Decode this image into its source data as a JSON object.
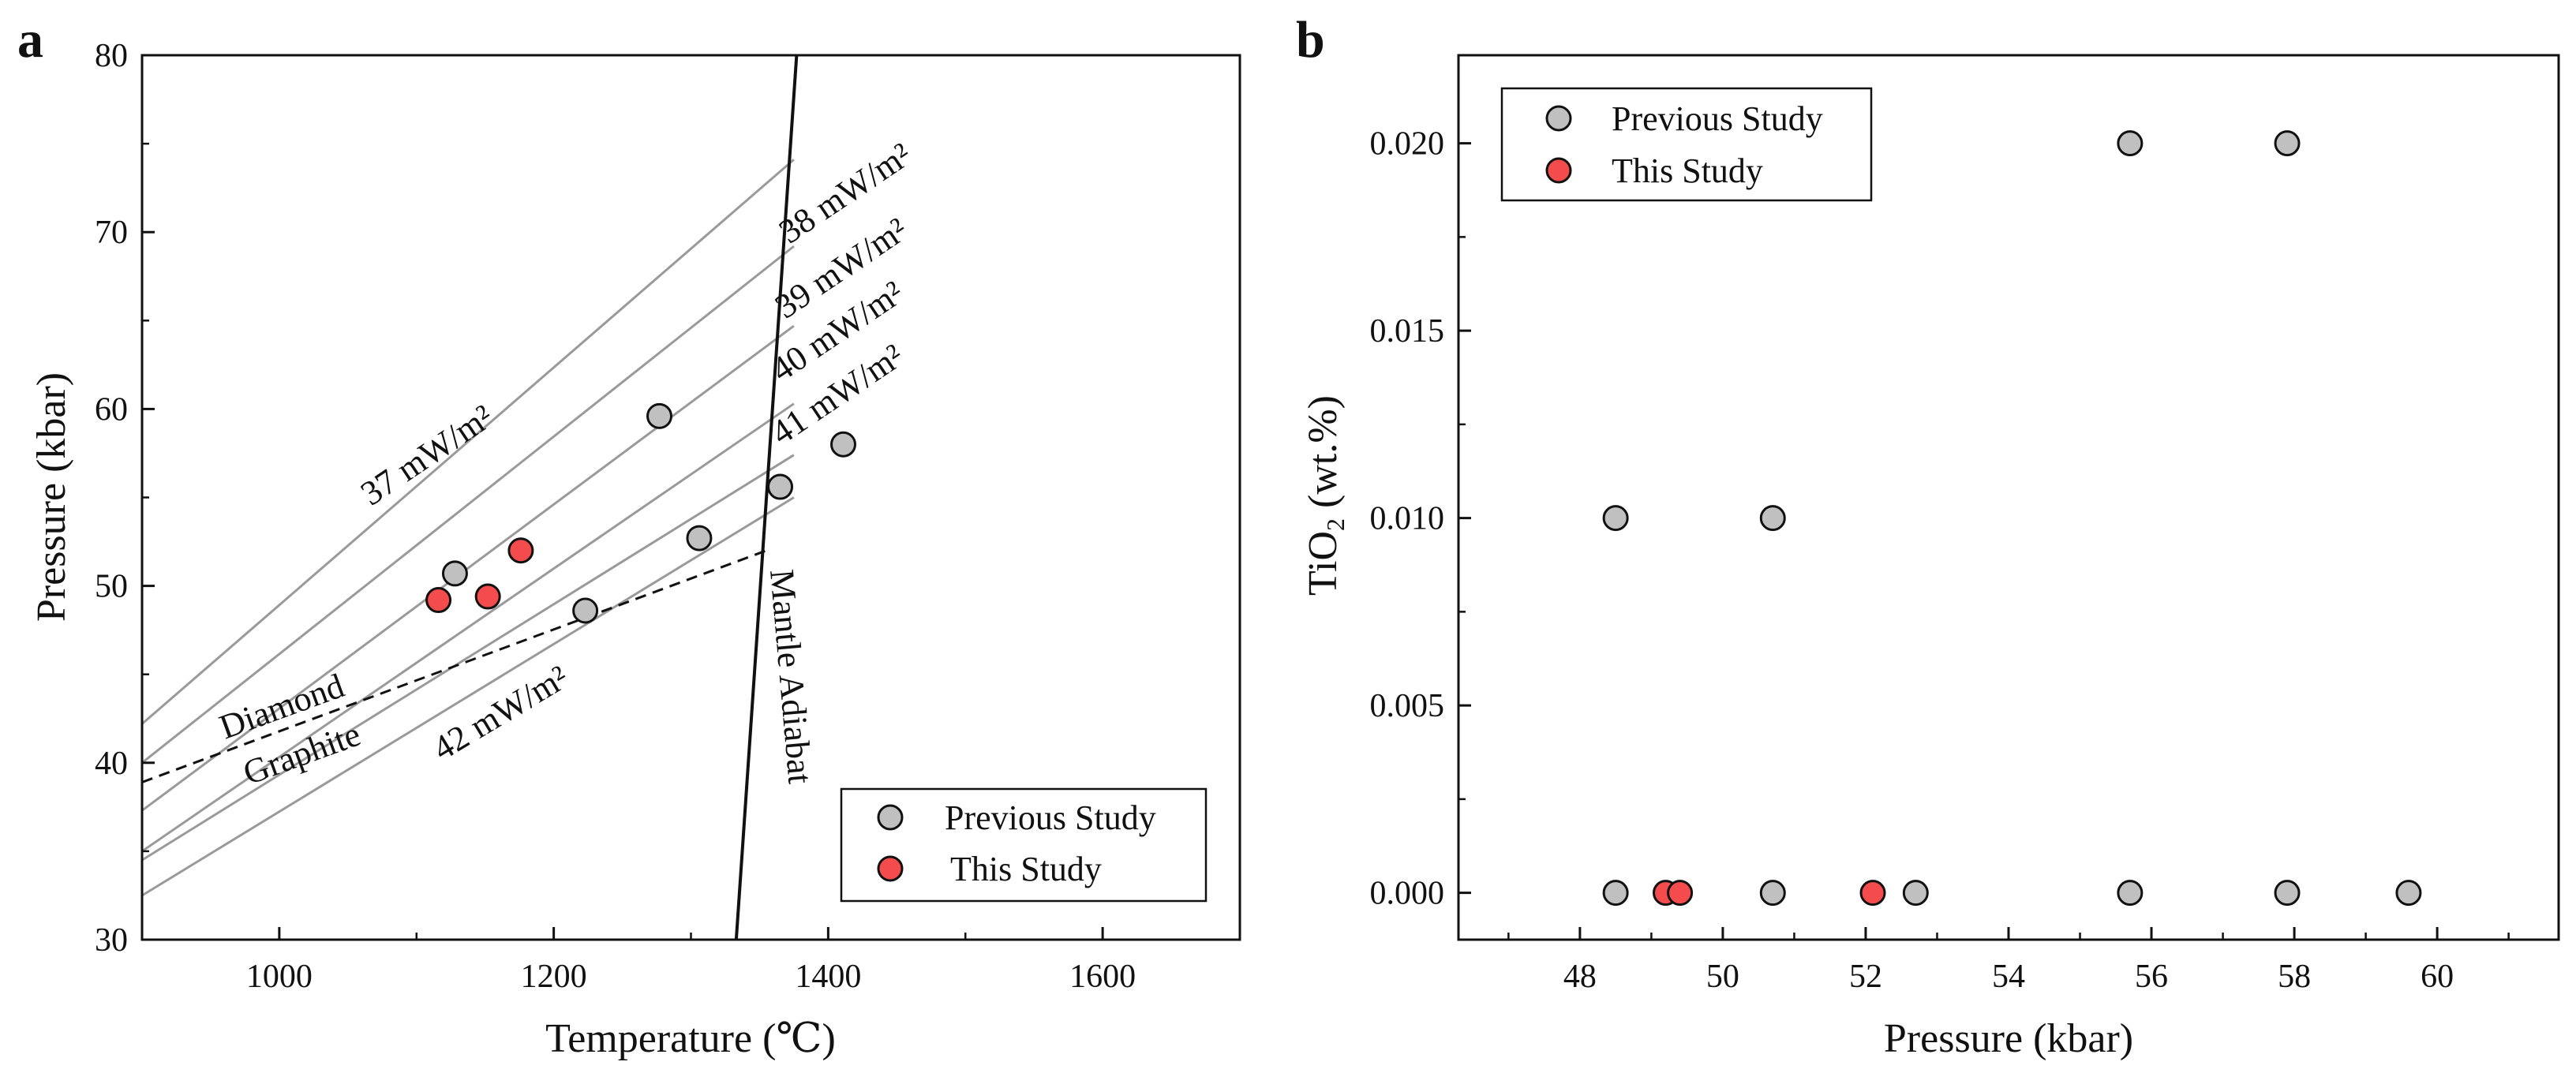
{
  "chart_data": [
    {
      "panel": "a",
      "type": "scatter",
      "xlabel": "Temperature (℃)",
      "ylabel": "Pressure (kbar)",
      "xlim": [
        900,
        1700
      ],
      "ylim": [
        30,
        80
      ],
      "xticks": [
        1000,
        1200,
        1400,
        1600
      ],
      "yticks": [
        30,
        40,
        50,
        60,
        70,
        80
      ],
      "series": [
        {
          "name": "Previous Study",
          "color": "#c0c0c0",
          "points": [
            [
              1128,
              50.7
            ],
            [
              1277,
              59.6
            ],
            [
              1306,
              52.7
            ],
            [
              1223,
              48.6
            ],
            [
              1365,
              55.6
            ],
            [
              1411,
              58.0
            ]
          ]
        },
        {
          "name": "This Study",
          "color": "#f44c4c",
          "points": [
            [
              1116,
              49.2
            ],
            [
              1152,
              49.4
            ],
            [
              1176,
              52.0
            ]
          ]
        }
      ],
      "geotherms": [
        {
          "label": "37 mW/m²",
          "from": [
            900,
            42.2
          ],
          "to": [
            1375,
            74.1
          ]
        },
        {
          "label": "38 mW/m²",
          "from": [
            900,
            40.0
          ],
          "to": [
            1375,
            69.2
          ]
        },
        {
          "label": "39 mW/m²",
          "from": [
            900,
            37.3
          ],
          "to": [
            1375,
            64.7
          ]
        },
        {
          "label": "40 mW/m²",
          "from": [
            900,
            35.0
          ],
          "to": [
            1375,
            60.3
          ]
        },
        {
          "label": "41 mW/m²",
          "from": [
            900,
            34.5
          ],
          "to": [
            1375,
            57.4
          ]
        },
        {
          "label": "42 mW/m²",
          "from": [
            900,
            32.5
          ],
          "to": [
            1375,
            55.0
          ]
        }
      ],
      "diamond_graphite_line": {
        "from": [
          900,
          38.9
        ],
        "to": [
          1355,
          52.0
        ]
      },
      "mantle_adiabat": {
        "from": [
          1333,
          30
        ],
        "to": [
          1377,
          80
        ]
      },
      "annotations": {
        "diamond": "Diamond",
        "graphite": "Graphite",
        "mantle_adiabat": "Mantle Adiabat",
        "geo37": "37 mW/m²",
        "geo38": "38 mW/m²",
        "geo39": "39 mW/m²",
        "geo40": "40 mW/m²",
        "geo41": "41 mW/m²",
        "geo42": "42 mW/m²"
      },
      "legend": {
        "position": "bottom-right",
        "entries": [
          "Previous Study",
          "This Study"
        ]
      }
    },
    {
      "panel": "b",
      "type": "scatter",
      "xlabel": "Pressure (kbar)",
      "ylabel": "TiO₂ (wt.%)",
      "ylabel_parts": {
        "pre": "TiO",
        "sub": "2",
        "post": " (wt.%)"
      },
      "xlim": [
        46.3,
        61.7
      ],
      "ylim": [
        -0.00125,
        0.02235
      ],
      "xticks": [
        48,
        50,
        52,
        54,
        56,
        58,
        60
      ],
      "yticks": [
        0.0,
        0.005,
        0.01,
        0.015,
        0.02
      ],
      "ytick_labels": [
        "0.000",
        "0.005",
        "0.010",
        "0.015",
        "0.020"
      ],
      "series": [
        {
          "name": "Previous Study",
          "color": "#c0c0c0",
          "points": [
            [
              48.5,
              0.01
            ],
            [
              50.7,
              0.01
            ],
            [
              55.7,
              0.02
            ],
            [
              57.9,
              0.02
            ],
            [
              48.5,
              0.0
            ],
            [
              50.7,
              0.0
            ],
            [
              52.7,
              0.0
            ],
            [
              55.7,
              0.0
            ],
            [
              57.9,
              0.0
            ],
            [
              59.6,
              0.0
            ]
          ]
        },
        {
          "name": "This Study",
          "color": "#f44c4c",
          "points": [
            [
              49.2,
              0.0
            ],
            [
              49.4,
              0.0
            ],
            [
              52.1,
              0.0
            ]
          ]
        }
      ],
      "legend": {
        "position": "top-left",
        "entries": [
          "Previous Study",
          "This Study"
        ]
      }
    }
  ],
  "panel_labels": {
    "a": "a",
    "b": "b"
  }
}
